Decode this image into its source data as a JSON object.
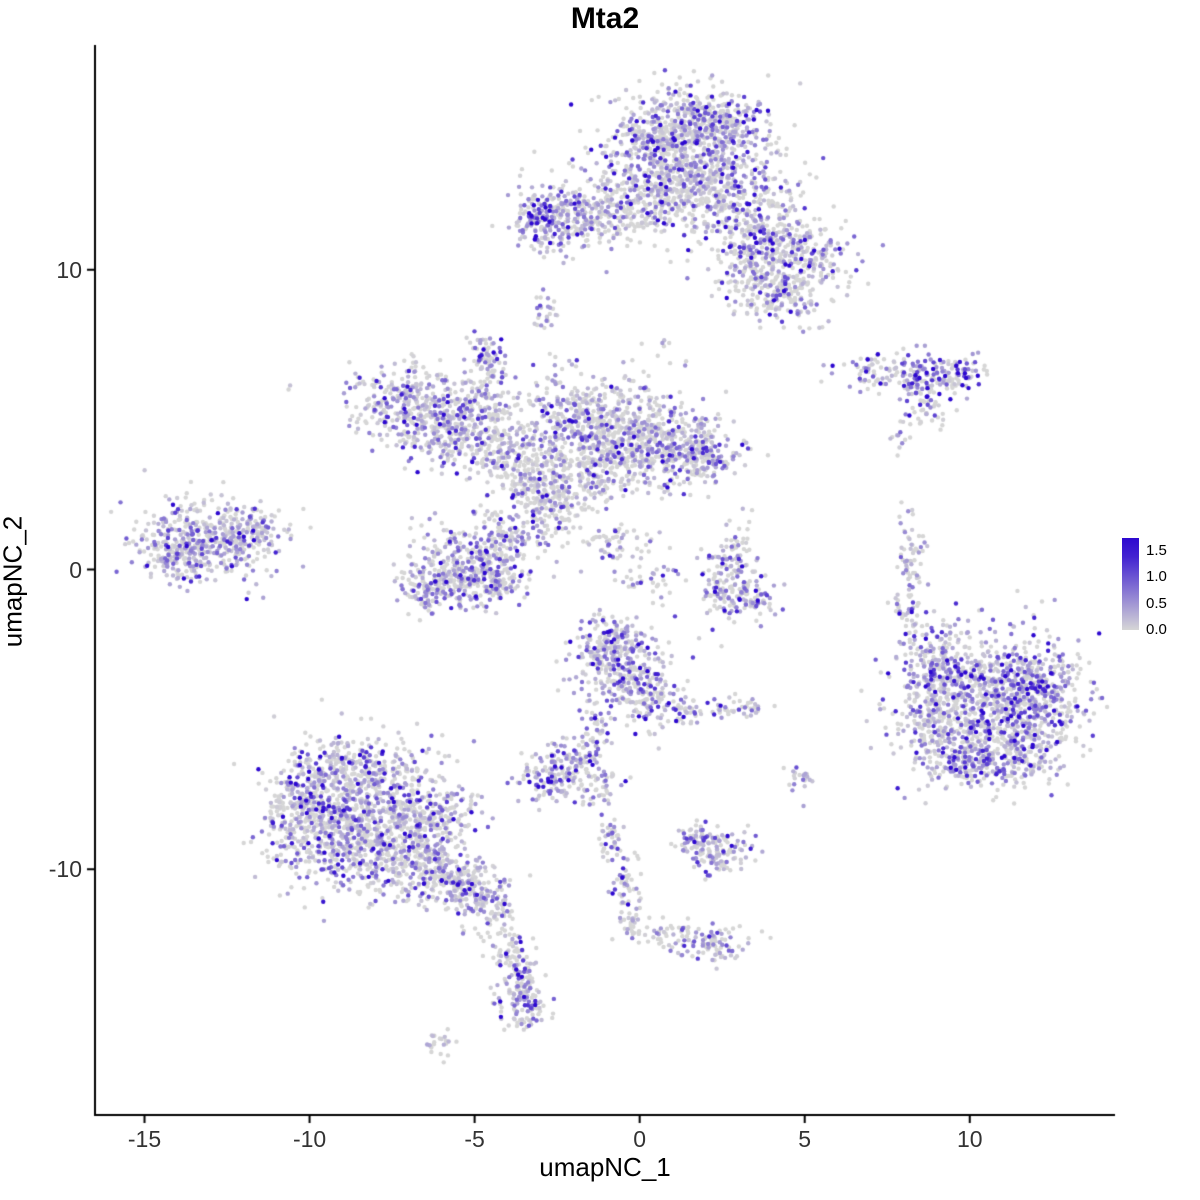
{
  "chart_data": {
    "type": "scatter",
    "title": "Mta2",
    "xlabel": "umapNC_1",
    "ylabel": "umapNC_2",
    "xlim": [
      -16.5,
      14.4
    ],
    "ylim": [
      -18.2,
      17.5
    ],
    "x_ticks": [
      -15,
      -10,
      -5,
      0,
      5,
      10
    ],
    "y_ticks": [
      -10,
      0,
      10
    ],
    "grid": false,
    "legend_position": "right",
    "legend_ticks": [
      1.5,
      1.0,
      0.5,
      0.0
    ],
    "value_max": 1.6,
    "legend_scale_max": 1.75,
    "colors": {
      "low": "#D6D6D6",
      "high": "#2D08D0",
      "axis": "#000000",
      "tick_text": "#333333",
      "background": "#FFFFFF"
    },
    "point_radius": 2.2,
    "cluster_fields": [
      "cx",
      "cy",
      "sx",
      "sy",
      "n",
      "zero_frac",
      "mean_expr"
    ],
    "clusters": [
      [
        1.5,
        14.3,
        1.2,
        0.8,
        550,
        0.45,
        0.5
      ],
      [
        1.0,
        13.1,
        1.4,
        0.6,
        300,
        0.5,
        0.45
      ],
      [
        2.3,
        15.1,
        0.7,
        0.45,
        150,
        0.45,
        0.5
      ],
      [
        0.6,
        14.6,
        0.5,
        0.5,
        120,
        0.4,
        0.55
      ],
      [
        3.4,
        11.6,
        0.9,
        0.8,
        260,
        0.5,
        0.5
      ],
      [
        4.8,
        10.4,
        0.9,
        0.7,
        260,
        0.45,
        0.55
      ],
      [
        4.3,
        9.2,
        0.6,
        0.45,
        130,
        0.5,
        0.5
      ],
      [
        -1.2,
        11.8,
        1.1,
        0.5,
        240,
        0.5,
        0.45
      ],
      [
        -2.8,
        11.6,
        0.55,
        0.5,
        200,
        0.3,
        0.6
      ],
      [
        0.3,
        12.4,
        0.8,
        0.5,
        140,
        0.55,
        0.4
      ],
      [
        2.2,
        12.2,
        0.5,
        0.7,
        110,
        0.5,
        0.45
      ],
      [
        3.1,
        10.1,
        0.4,
        0.8,
        90,
        0.5,
        0.5
      ],
      [
        -2.9,
        8.6,
        0.18,
        0.35,
        25,
        0.35,
        0.55
      ],
      [
        5.1,
        8.0,
        0.12,
        0.12,
        3,
        0.6,
        0.4
      ],
      [
        -7.0,
        5.6,
        0.85,
        0.65,
        280,
        0.4,
        0.55
      ],
      [
        -5.9,
        4.6,
        0.75,
        0.65,
        230,
        0.45,
        0.5
      ],
      [
        -4.6,
        6.7,
        0.3,
        0.5,
        60,
        0.4,
        0.55
      ],
      [
        -4.7,
        7.3,
        0.2,
        0.3,
        30,
        0.4,
        0.55
      ],
      [
        -4.9,
        5.3,
        0.4,
        0.5,
        90,
        0.45,
        0.5
      ],
      [
        -4.3,
        4.2,
        0.5,
        0.6,
        130,
        0.45,
        0.5
      ],
      [
        -3.4,
        3.1,
        0.6,
        0.6,
        150,
        0.45,
        0.5
      ],
      [
        -2.0,
        4.9,
        1.0,
        0.85,
        360,
        0.5,
        0.5
      ],
      [
        -0.5,
        4.6,
        0.9,
        0.85,
        330,
        0.5,
        0.45
      ],
      [
        0.9,
        4.1,
        0.8,
        0.7,
        260,
        0.45,
        0.5
      ],
      [
        2.0,
        3.9,
        0.55,
        0.5,
        150,
        0.4,
        0.55
      ],
      [
        -1.6,
        3.1,
        0.8,
        0.55,
        190,
        0.5,
        0.45
      ],
      [
        -2.7,
        2.2,
        0.5,
        0.5,
        110,
        0.45,
        0.5
      ],
      [
        -4.1,
        1.1,
        0.6,
        0.5,
        130,
        0.45,
        0.5
      ],
      [
        -5.3,
        0.2,
        0.8,
        0.65,
        260,
        0.4,
        0.55
      ],
      [
        -6.2,
        -0.6,
        0.55,
        0.45,
        140,
        0.45,
        0.5
      ],
      [
        -4.4,
        -0.4,
        0.5,
        0.45,
        110,
        0.45,
        0.5
      ],
      [
        -0.7,
        0.9,
        0.8,
        0.35,
        60,
        0.55,
        0.45
      ],
      [
        0.3,
        -0.3,
        0.4,
        0.3,
        35,
        0.5,
        0.5
      ],
      [
        -13.2,
        1.0,
        1.0,
        0.7,
        420,
        0.35,
        0.55
      ],
      [
        -11.7,
        1.3,
        0.5,
        0.4,
        90,
        0.4,
        0.5
      ],
      [
        -14.2,
        0.4,
        0.4,
        0.4,
        70,
        0.4,
        0.5
      ],
      [
        2.6,
        -0.4,
        0.5,
        0.6,
        110,
        0.45,
        0.6
      ],
      [
        3.3,
        -1.0,
        0.5,
        0.35,
        70,
        0.4,
        0.6
      ],
      [
        2.9,
        0.7,
        0.25,
        0.5,
        40,
        0.5,
        0.5
      ],
      [
        8.2,
        0.2,
        0.22,
        0.8,
        65,
        0.5,
        0.5
      ],
      [
        8.0,
        -1.4,
        0.2,
        0.5,
        30,
        0.55,
        0.45
      ],
      [
        7.3,
        6.6,
        0.7,
        0.3,
        80,
        0.4,
        0.6
      ],
      [
        8.8,
        6.4,
        0.55,
        0.4,
        110,
        0.3,
        0.8
      ],
      [
        9.6,
        6.6,
        0.3,
        0.3,
        45,
        0.35,
        0.7
      ],
      [
        8.7,
        5.4,
        0.3,
        0.45,
        40,
        0.4,
        0.6
      ],
      [
        7.9,
        4.4,
        0.15,
        0.3,
        12,
        0.5,
        0.5
      ],
      [
        10.6,
        -4.3,
        1.4,
        1.1,
        800,
        0.35,
        0.6
      ],
      [
        12.0,
        -4.1,
        0.7,
        0.8,
        230,
        0.35,
        0.6
      ],
      [
        9.1,
        -3.1,
        0.5,
        0.6,
        140,
        0.4,
        0.55
      ],
      [
        8.7,
        -4.7,
        0.4,
        0.7,
        120,
        0.45,
        0.5
      ],
      [
        9.7,
        -6.3,
        0.7,
        0.55,
        180,
        0.4,
        0.55
      ],
      [
        11.4,
        -6.2,
        0.8,
        0.5,
        180,
        0.4,
        0.6
      ],
      [
        -0.5,
        -3.2,
        0.75,
        0.75,
        280,
        0.4,
        0.55
      ],
      [
        0.3,
        -4.4,
        0.5,
        0.5,
        110,
        0.45,
        0.5
      ],
      [
        -0.9,
        -2.3,
        0.5,
        0.4,
        90,
        0.4,
        0.55
      ],
      [
        -1.4,
        -5.4,
        0.3,
        0.5,
        45,
        0.5,
        0.5
      ],
      [
        -2.0,
        -6.3,
        0.4,
        0.4,
        60,
        0.45,
        0.5
      ],
      [
        -2.7,
        -6.9,
        0.5,
        0.4,
        110,
        0.35,
        0.6
      ],
      [
        -1.3,
        -7.2,
        0.4,
        0.3,
        55,
        0.45,
        0.5
      ],
      [
        1.4,
        -4.8,
        0.3,
        0.25,
        35,
        0.45,
        0.5
      ],
      [
        2.6,
        -4.6,
        0.3,
        0.2,
        25,
        0.45,
        0.5
      ],
      [
        3.4,
        -4.6,
        0.22,
        0.18,
        20,
        0.45,
        0.5
      ],
      [
        -8.5,
        -7.8,
        1.2,
        1.0,
        520,
        0.45,
        0.5
      ],
      [
        -9.6,
        -9.0,
        0.8,
        0.75,
        280,
        0.45,
        0.5
      ],
      [
        -7.5,
        -9.3,
        0.9,
        0.75,
        320,
        0.45,
        0.5
      ],
      [
        -6.3,
        -8.4,
        0.7,
        0.7,
        230,
        0.45,
        0.5
      ],
      [
        -8.7,
        -6.6,
        0.9,
        0.5,
        190,
        0.5,
        0.45
      ],
      [
        -10.3,
        -7.8,
        0.5,
        0.6,
        130,
        0.45,
        0.5
      ],
      [
        -6.0,
        -10.2,
        0.6,
        0.5,
        170,
        0.45,
        0.5
      ],
      [
        -5.0,
        -10.8,
        0.5,
        0.4,
        110,
        0.45,
        0.5
      ],
      [
        -4.3,
        -11.7,
        0.35,
        0.5,
        65,
        0.45,
        0.5
      ],
      [
        -3.9,
        -12.7,
        0.25,
        0.4,
        40,
        0.5,
        0.5
      ],
      [
        -3.6,
        -13.6,
        0.3,
        0.5,
        55,
        0.45,
        0.5
      ],
      [
        -3.5,
        -14.5,
        0.4,
        0.45,
        100,
        0.4,
        0.55
      ],
      [
        -6.2,
        -15.8,
        0.25,
        0.2,
        22,
        0.5,
        0.5
      ],
      [
        2.4,
        -9.4,
        0.5,
        0.4,
        120,
        0.4,
        0.55
      ],
      [
        1.7,
        -9.0,
        0.3,
        0.3,
        45,
        0.45,
        0.5
      ],
      [
        -0.9,
        -9.2,
        0.2,
        0.4,
        38,
        0.45,
        0.5
      ],
      [
        -0.5,
        -10.5,
        0.25,
        0.6,
        45,
        0.5,
        0.5
      ],
      [
        -0.2,
        -11.7,
        0.2,
        0.4,
        32,
        0.5,
        0.5
      ],
      [
        0.8,
        -12.2,
        0.5,
        0.3,
        40,
        0.5,
        0.5
      ],
      [
        2.2,
        -12.5,
        0.5,
        0.35,
        85,
        0.4,
        0.6
      ],
      [
        4.9,
        -7.0,
        0.2,
        0.3,
        22,
        0.45,
        0.5
      ],
      [
        -10.6,
        6.1,
        0.05,
        0.05,
        2,
        0.5,
        0.3
      ],
      [
        0.8,
        7.6,
        0.1,
        0.15,
        4,
        0.5,
        0.4
      ]
    ]
  }
}
